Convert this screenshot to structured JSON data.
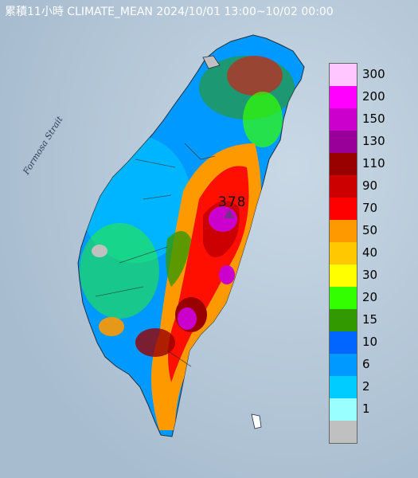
{
  "title": "累積11小時 CLIMATE_MEAN 2024/10/01 13:00~10/02 00:00",
  "map": {
    "sea_label": "Formosa Strait",
    "max_value_label": "378",
    "background_color": "#b9c9d8"
  },
  "legend": {
    "items": [
      {
        "label": "300",
        "color": "#ffc6ff"
      },
      {
        "label": "200",
        "color": "#ff00ff"
      },
      {
        "label": "150",
        "color": "#cc00cc"
      },
      {
        "label": "130",
        "color": "#990099"
      },
      {
        "label": "110",
        "color": "#990000"
      },
      {
        "label": "90",
        "color": "#cc0000"
      },
      {
        "label": "70",
        "color": "#ff0000"
      },
      {
        "label": "50",
        "color": "#ff9900"
      },
      {
        "label": "40",
        "color": "#ffc800"
      },
      {
        "label": "30",
        "color": "#ffff00"
      },
      {
        "label": "20",
        "color": "#33ff00"
      },
      {
        "label": "15",
        "color": "#339900"
      },
      {
        "label": "10",
        "color": "#0066ff"
      },
      {
        "label": "6",
        "color": "#0099ff"
      },
      {
        "label": "2",
        "color": "#00ccff"
      },
      {
        "label": "1",
        "color": "#99ffff"
      },
      {
        "label": "",
        "color": "#c0c0c0"
      }
    ]
  }
}
